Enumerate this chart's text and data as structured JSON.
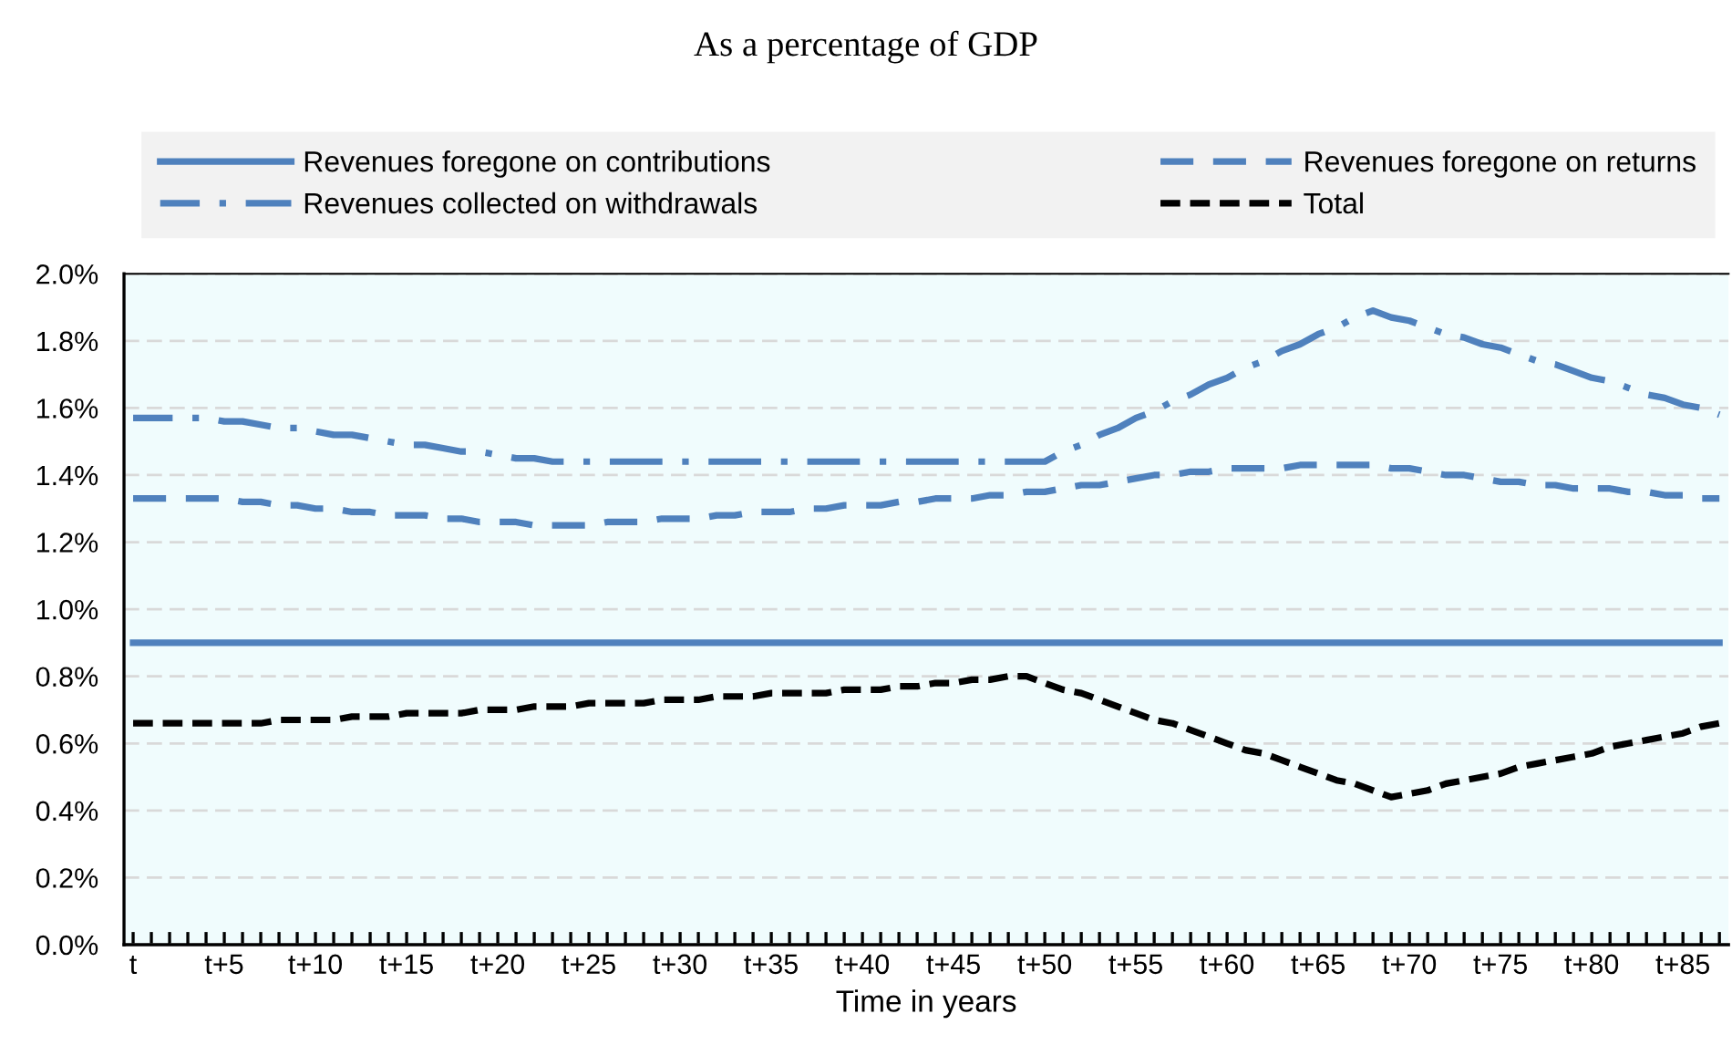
{
  "chart_data": {
    "type": "line",
    "title": "As a percentage of GDP",
    "xlabel": "Time in years",
    "categories": [
      "t",
      null,
      null,
      null,
      null,
      "t+5",
      null,
      null,
      null,
      null,
      "t+10",
      null,
      null,
      null,
      null,
      "t+15",
      null,
      null,
      null,
      null,
      "t+20",
      null,
      null,
      null,
      null,
      "t+25",
      null,
      null,
      null,
      null,
      "t+30",
      null,
      null,
      null,
      null,
      "t+35",
      null,
      null,
      null,
      null,
      "t+40",
      null,
      null,
      null,
      null,
      "t+45",
      null,
      null,
      null,
      null,
      "t+50",
      null,
      null,
      null,
      null,
      "t+55",
      null,
      null,
      null,
      null,
      "t+60",
      null,
      null,
      null,
      null,
      "t+65",
      null,
      null,
      null,
      null,
      "t+70",
      null,
      null,
      null,
      null,
      "t+75",
      null,
      null,
      null,
      null,
      "t+80",
      null,
      null,
      null,
      null,
      "t+85",
      null,
      null
    ],
    "ylim": [
      0,
      2.0
    ],
    "yticks": [
      {
        "value": 0,
        "label": "0.0%"
      },
      {
        "value": 0.2,
        "label": "0.2%"
      },
      {
        "value": 0.4,
        "label": "0.4%"
      },
      {
        "value": 0.6,
        "label": "0.6%"
      },
      {
        "value": 0.8,
        "label": "0.8%"
      },
      {
        "value": 1.0,
        "label": "1.0%"
      },
      {
        "value": 1.2,
        "label": "1.2%"
      },
      {
        "value": 1.4,
        "label": "1.4%"
      },
      {
        "value": 1.6,
        "label": "1.6%"
      },
      {
        "value": 1.8,
        "label": "1.8%"
      },
      {
        "value": 2.0,
        "label": "2.0%"
      }
    ],
    "grid": "y",
    "legend": "top",
    "series": [
      {
        "name": "Revenues foregone on contributions",
        "color": "#4f81bd",
        "line_style": "solid",
        "values": [
          0.9,
          0.9,
          0.9,
          0.9,
          0.9,
          0.9,
          0.9,
          0.9,
          0.9,
          0.9,
          0.9,
          0.9,
          0.9,
          0.9,
          0.9,
          0.9,
          0.9,
          0.9,
          0.9,
          0.9,
          0.9,
          0.9,
          0.9,
          0.9,
          0.9,
          0.9,
          0.9,
          0.9,
          0.9,
          0.9,
          0.9,
          0.9,
          0.9,
          0.9,
          0.9,
          0.9,
          0.9,
          0.9,
          0.9,
          0.9,
          0.9,
          0.9,
          0.9,
          0.9,
          0.9,
          0.9,
          0.9,
          0.9,
          0.9,
          0.9,
          0.9,
          0.9,
          0.9,
          0.9,
          0.9,
          0.9,
          0.9,
          0.9,
          0.9,
          0.9,
          0.9,
          0.9,
          0.9,
          0.9,
          0.9,
          0.9,
          0.9,
          0.9,
          0.9,
          0.9,
          0.9,
          0.9,
          0.9,
          0.9,
          0.9,
          0.9,
          0.9,
          0.9,
          0.9,
          0.9,
          0.9,
          0.9,
          0.9,
          0.9,
          0.9,
          0.9,
          0.9,
          0.9
        ]
      },
      {
        "name": "Revenues foregone on returns",
        "color": "#4f81bd",
        "line_style": "dashed",
        "values": [
          1.33,
          1.33,
          1.33,
          1.33,
          1.33,
          1.33,
          1.32,
          1.32,
          1.31,
          1.31,
          1.3,
          1.3,
          1.29,
          1.29,
          1.28,
          1.28,
          1.28,
          1.27,
          1.27,
          1.26,
          1.26,
          1.26,
          1.25,
          1.25,
          1.25,
          1.25,
          1.26,
          1.26,
          1.26,
          1.27,
          1.27,
          1.27,
          1.28,
          1.28,
          1.29,
          1.29,
          1.29,
          1.3,
          1.3,
          1.31,
          1.31,
          1.31,
          1.32,
          1.32,
          1.33,
          1.33,
          1.33,
          1.34,
          1.34,
          1.35,
          1.35,
          1.36,
          1.37,
          1.37,
          1.38,
          1.39,
          1.4,
          1.4,
          1.41,
          1.41,
          1.42,
          1.42,
          1.42,
          1.42,
          1.43,
          1.43,
          1.43,
          1.43,
          1.43,
          1.42,
          1.42,
          1.41,
          1.4,
          1.4,
          1.39,
          1.38,
          1.38,
          1.37,
          1.37,
          1.36,
          1.36,
          1.36,
          1.35,
          1.35,
          1.34,
          1.34,
          1.33,
          1.33
        ]
      },
      {
        "name": "Revenues collected on withdrawals",
        "color": "#4f81bd",
        "line_style": "dashdot",
        "values": [
          1.57,
          1.57,
          1.57,
          1.57,
          1.57,
          1.56,
          1.56,
          1.55,
          1.54,
          1.54,
          1.53,
          1.52,
          1.52,
          1.51,
          1.5,
          1.49,
          1.49,
          1.48,
          1.47,
          1.47,
          1.46,
          1.45,
          1.45,
          1.44,
          1.44,
          1.44,
          1.44,
          1.44,
          1.44,
          1.44,
          1.44,
          1.44,
          1.44,
          1.44,
          1.44,
          1.44,
          1.44,
          1.44,
          1.44,
          1.44,
          1.44,
          1.44,
          1.44,
          1.44,
          1.44,
          1.44,
          1.44,
          1.44,
          1.44,
          1.44,
          1.44,
          1.47,
          1.49,
          1.52,
          1.54,
          1.57,
          1.59,
          1.62,
          1.64,
          1.67,
          1.69,
          1.72,
          1.74,
          1.77,
          1.79,
          1.82,
          1.84,
          1.87,
          1.89,
          1.87,
          1.86,
          1.84,
          1.82,
          1.81,
          1.79,
          1.78,
          1.76,
          1.74,
          1.73,
          1.71,
          1.69,
          1.68,
          1.66,
          1.64,
          1.63,
          1.61,
          1.6,
          1.58
        ]
      },
      {
        "name": "Total",
        "color": "#000000",
        "line_style": "dashed",
        "values": [
          0.66,
          0.66,
          0.66,
          0.66,
          0.66,
          0.66,
          0.66,
          0.66,
          0.67,
          0.67,
          0.67,
          0.67,
          0.68,
          0.68,
          0.68,
          0.69,
          0.69,
          0.69,
          0.69,
          0.7,
          0.7,
          0.7,
          0.71,
          0.71,
          0.71,
          0.72,
          0.72,
          0.72,
          0.72,
          0.73,
          0.73,
          0.73,
          0.74,
          0.74,
          0.74,
          0.75,
          0.75,
          0.75,
          0.75,
          0.76,
          0.76,
          0.76,
          0.77,
          0.77,
          0.78,
          0.78,
          0.79,
          0.79,
          0.8,
          0.8,
          0.78,
          0.76,
          0.75,
          0.73,
          0.71,
          0.69,
          0.67,
          0.66,
          0.64,
          0.62,
          0.6,
          0.58,
          0.57,
          0.55,
          0.53,
          0.51,
          0.49,
          0.48,
          0.46,
          0.44,
          0.45,
          0.46,
          0.48,
          0.49,
          0.5,
          0.51,
          0.53,
          0.54,
          0.55,
          0.56,
          0.57,
          0.59,
          0.6,
          0.61,
          0.62,
          0.63,
          0.65,
          0.66
        ]
      }
    ]
  }
}
